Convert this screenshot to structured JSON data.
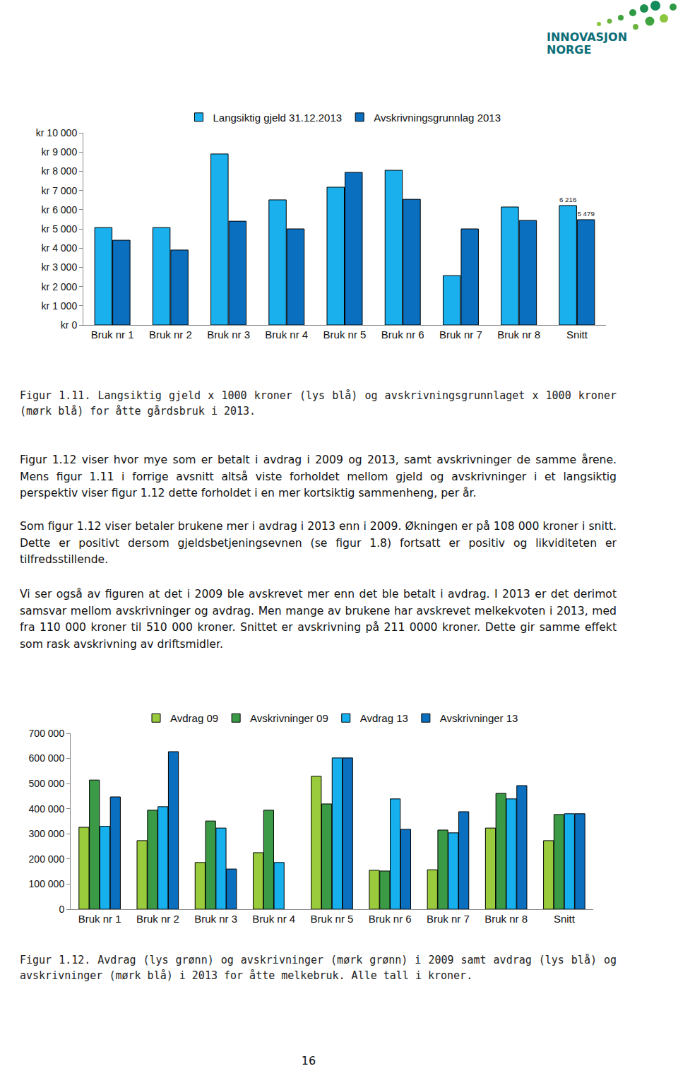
{
  "document": {
    "logo": [
      "INNOVASJON",
      "NORGE"
    ],
    "captions": [
      "Figur 1.11. Langsiktig gjeld x 1000 kroner (lys blå) og avskrivningsgrunnlaget x 1000 kroner (mørk blå) for åtte gårdsbruk i 2013.",
      "Figur 1.12. Avdrag (lys grønn) og avskrivninger (mørk grønn) i 2009 samt avdrag (lys blå) og avskrivninger (mørk blå) i 2013 for åtte melkebruk. Alle tall i kroner."
    ],
    "paragraphs": [
      "Figur 1.12 viser hvor mye som er betalt i avdrag i 2009 og 2013, samt avskrivninger de samme årene. Mens figur 1.11 i forrige avsnitt altså viste forholdet mellom gjeld og avskrivninger i et langsiktig perspektiv viser figur 1.12 dette forholdet i en mer kortsiktig sammenheng, per år.",
      "Som figur 1.12 viser betaler brukene mer i avdrag i 2013 enn i 2009. Økningen er på 108 000 kroner i snitt. Dette er positivt dersom gjeldsbetjeningsevnen (se figur 1.8) fortsatt er positiv og likviditeten er tilfredsstillende.",
      "Vi ser også av figuren at det i 2009 ble avskrevet mer enn det ble betalt i avdrag. I 2013 er det derimot samsvar mellom avskrivninger og avdrag. Men mange av brukene har avskrevet melkekvoten i 2013, med fra 110 000 kroner til 510 000 kroner. Snittet er avskrivning på 211 0000 kroner. Dette gir samme effekt som rask avskrivning av driftsmidler."
    ],
    "page_number": "16"
  },
  "chart_data": [
    {
      "type": "bar",
      "categories": [
        "Bruk nr 1",
        "Bruk nr 2",
        "Bruk nr 3",
        "Bruk nr 4",
        "Bruk nr 5",
        "Bruk nr 6",
        "Bruk nr 7",
        "Bruk nr 8",
        "Snitt"
      ],
      "series": [
        {
          "name": "Langsiktig gjeld 31.12.2013",
          "color": "#1ab0ee",
          "values": [
            5070,
            5070,
            8900,
            6510,
            7170,
            8050,
            2570,
            6140,
            6216
          ],
          "value_labels": [
            null,
            null,
            null,
            null,
            null,
            null,
            null,
            null,
            "6 216"
          ]
        },
        {
          "name": "Avskrivningsgrunnlag 2013",
          "color": "#0a6fbf",
          "values": [
            4410,
            3900,
            5400,
            5000,
            7940,
            6540,
            5000,
            5440,
            5479
          ],
          "value_labels": [
            null,
            null,
            null,
            null,
            null,
            null,
            null,
            null,
            "5 479"
          ]
        }
      ],
      "ylim": [
        0,
        10000
      ],
      "yticks": [
        {
          "value": 0,
          "label": "kr 0"
        },
        {
          "value": 1000,
          "label": "kr 1 000"
        },
        {
          "value": 2000,
          "label": "kr 2 000"
        },
        {
          "value": 3000,
          "label": "kr 3 000"
        },
        {
          "value": 4000,
          "label": "kr 4 000"
        },
        {
          "value": 5000,
          "label": "kr 5 000"
        },
        {
          "value": 6000,
          "label": "kr 6 000"
        },
        {
          "value": 7000,
          "label": "kr 7 000"
        },
        {
          "value": 8000,
          "label": "kr 8 000"
        },
        {
          "value": 9000,
          "label": "kr 9 000"
        },
        {
          "value": 10000,
          "label": "kr 10 000"
        }
      ],
      "grid": false,
      "legend": "top",
      "data_labels": true
    },
    {
      "type": "bar",
      "categories": [
        "Bruk nr 1",
        "Bruk nr 2",
        "Bruk nr 3",
        "Bruk nr 4",
        "Bruk nr 5",
        "Bruk nr 6",
        "Bruk nr 7",
        "Bruk nr 8",
        "Snitt"
      ],
      "series": [
        {
          "name": "Avdrag 09",
          "color": "#9acb3c",
          "values": [
            326000,
            273000,
            186000,
            225000,
            529000,
            155000,
            157000,
            323000,
            273000
          ]
        },
        {
          "name": "Avskrivninger 09",
          "color": "#3a9a45",
          "values": [
            514000,
            394000,
            351000,
            394000,
            419000,
            152000,
            315000,
            461000,
            377000
          ]
        },
        {
          "name": "Avdrag 13",
          "color": "#16b0ef",
          "values": [
            330000,
            408000,
            323000,
            186000,
            602000,
            439000,
            304000,
            439000,
            380000
          ]
        },
        {
          "name": "Avskrivninger 13",
          "color": "#0a6fbf",
          "values": [
            447000,
            627000,
            160000,
            null,
            602000,
            318000,
            388000,
            492000,
            380000
          ]
        }
      ],
      "ylim": [
        0,
        700000
      ],
      "yticks": [
        0,
        {
          "value": 100000,
          "label": "100 000"
        },
        {
          "value": 200000,
          "label": "200 000"
        },
        {
          "value": 300000,
          "label": "300 000"
        },
        {
          "value": 400000,
          "label": "400 000"
        },
        {
          "value": 500000,
          "label": "500 000"
        },
        {
          "value": 600000,
          "label": "600 000"
        },
        {
          "value": 700000,
          "label": "700 000"
        }
      ],
      "grid": false,
      "legend": "top"
    }
  ]
}
